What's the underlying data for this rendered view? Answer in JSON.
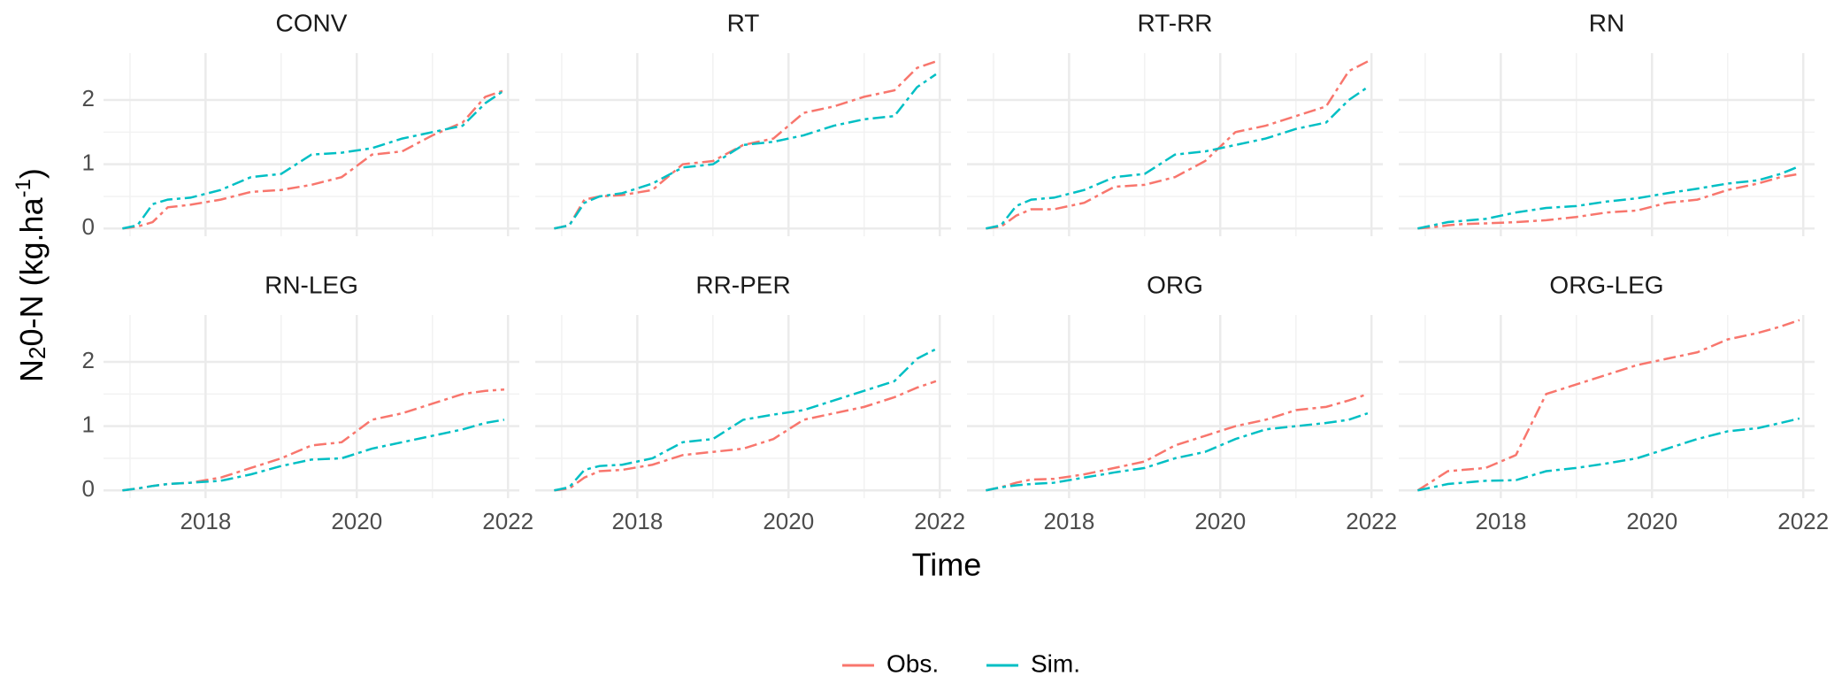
{
  "axis_labels": {
    "x": "Time",
    "y": [
      "N",
      "2",
      "0-N (kg.ha",
      "-1",
      ")"
    ]
  },
  "chart_data": [
    {
      "type": "line",
      "title": "CONV",
      "x": [
        2016.9,
        2017.1,
        2017.3,
        2017.5,
        2017.8,
        2018.2,
        2018.6,
        2019.0,
        2019.4,
        2019.8,
        2020.2,
        2020.6,
        2021.0,
        2021.4,
        2021.7,
        2021.95
      ],
      "xlim": [
        2016.65,
        2022.15
      ],
      "xticks": [
        2018,
        2020,
        2022
      ],
      "ylim": [
        -0.12,
        2.73
      ],
      "yticks": [
        0,
        1,
        2
      ],
      "grid": true,
      "series": [
        {
          "name": "Obs.",
          "color": "#F8766D",
          "values": [
            0,
            0.03,
            0.1,
            0.33,
            0.37,
            0.45,
            0.57,
            0.6,
            0.68,
            0.8,
            1.15,
            1.2,
            1.45,
            1.65,
            2.05,
            2.15
          ]
        },
        {
          "name": "Sim.",
          "color": "#00BFC4",
          "values": [
            0,
            0.05,
            0.38,
            0.45,
            0.48,
            0.6,
            0.8,
            0.85,
            1.15,
            1.18,
            1.25,
            1.4,
            1.5,
            1.6,
            1.95,
            2.15
          ]
        }
      ]
    },
    {
      "type": "line",
      "title": "RT",
      "x": [
        2016.9,
        2017.1,
        2017.3,
        2017.5,
        2017.8,
        2018.2,
        2018.6,
        2019.0,
        2019.4,
        2019.8,
        2020.2,
        2020.6,
        2021.0,
        2021.4,
        2021.7,
        2021.95
      ],
      "xlim": [
        2016.65,
        2022.15
      ],
      "xticks": [
        2018,
        2020,
        2022
      ],
      "ylim": [
        -0.12,
        2.73
      ],
      "yticks": [
        0,
        1,
        2
      ],
      "grid": true,
      "series": [
        {
          "name": "Obs.",
          "color": "#F8766D",
          "values": [
            0,
            0.05,
            0.45,
            0.5,
            0.52,
            0.6,
            1.0,
            1.05,
            1.3,
            1.4,
            1.8,
            1.9,
            2.05,
            2.15,
            2.5,
            2.6
          ]
        },
        {
          "name": "Sim.",
          "color": "#00BFC4",
          "values": [
            0,
            0.05,
            0.4,
            0.5,
            0.55,
            0.7,
            0.95,
            1.0,
            1.3,
            1.35,
            1.45,
            1.6,
            1.7,
            1.75,
            2.2,
            2.4
          ]
        }
      ]
    },
    {
      "type": "line",
      "title": "RT-RR",
      "x": [
        2016.9,
        2017.1,
        2017.3,
        2017.5,
        2017.8,
        2018.2,
        2018.6,
        2019.0,
        2019.4,
        2019.8,
        2020.2,
        2020.6,
        2021.0,
        2021.4,
        2021.7,
        2021.95
      ],
      "xlim": [
        2016.65,
        2022.15
      ],
      "xticks": [
        2018,
        2020,
        2022
      ],
      "ylim": [
        -0.12,
        2.73
      ],
      "yticks": [
        0,
        1,
        2
      ],
      "grid": true,
      "series": [
        {
          "name": "Obs.",
          "color": "#F8766D",
          "values": [
            0,
            0.03,
            0.2,
            0.3,
            0.3,
            0.4,
            0.65,
            0.68,
            0.8,
            1.05,
            1.5,
            1.6,
            1.75,
            1.9,
            2.45,
            2.6
          ]
        },
        {
          "name": "Sim.",
          "color": "#00BFC4",
          "values": [
            0,
            0.05,
            0.35,
            0.45,
            0.48,
            0.6,
            0.8,
            0.85,
            1.15,
            1.2,
            1.3,
            1.4,
            1.55,
            1.65,
            2.0,
            2.2
          ]
        }
      ]
    },
    {
      "type": "line",
      "title": "RN",
      "x": [
        2016.9,
        2017.1,
        2017.3,
        2017.5,
        2017.8,
        2018.2,
        2018.6,
        2019.0,
        2019.4,
        2019.8,
        2020.2,
        2020.6,
        2021.0,
        2021.4,
        2021.7,
        2021.95
      ],
      "xlim": [
        2016.65,
        2022.15
      ],
      "xticks": [
        2018,
        2020,
        2022
      ],
      "ylim": [
        -0.12,
        2.73
      ],
      "yticks": [
        0,
        1,
        2
      ],
      "grid": true,
      "series": [
        {
          "name": "Obs.",
          "color": "#F8766D",
          "values": [
            0,
            0.02,
            0.05,
            0.07,
            0.08,
            0.1,
            0.13,
            0.18,
            0.25,
            0.28,
            0.4,
            0.45,
            0.6,
            0.7,
            0.8,
            0.85
          ]
        },
        {
          "name": "Sim.",
          "color": "#00BFC4",
          "values": [
            0,
            0.05,
            0.1,
            0.12,
            0.15,
            0.25,
            0.32,
            0.35,
            0.42,
            0.47,
            0.55,
            0.62,
            0.7,
            0.75,
            0.85,
            0.97
          ]
        }
      ]
    },
    {
      "type": "line",
      "title": "RN-LEG",
      "x": [
        2016.9,
        2017.1,
        2017.3,
        2017.5,
        2017.8,
        2018.2,
        2018.6,
        2019.0,
        2019.4,
        2019.8,
        2020.2,
        2020.6,
        2021.0,
        2021.4,
        2021.7,
        2021.95
      ],
      "xlim": [
        2016.65,
        2022.15
      ],
      "xticks": [
        2018,
        2020,
        2022
      ],
      "ylim": [
        -0.12,
        2.73
      ],
      "yticks": [
        0,
        1,
        2
      ],
      "grid": true,
      "series": [
        {
          "name": "Obs.",
          "color": "#F8766D",
          "values": [
            0,
            0.03,
            0.07,
            0.1,
            0.12,
            0.2,
            0.35,
            0.5,
            0.7,
            0.75,
            1.1,
            1.2,
            1.35,
            1.5,
            1.55,
            1.57
          ]
        },
        {
          "name": "Sim.",
          "color": "#00BFC4",
          "values": [
            0,
            0.03,
            0.07,
            0.1,
            0.12,
            0.15,
            0.25,
            0.38,
            0.48,
            0.5,
            0.65,
            0.75,
            0.85,
            0.95,
            1.05,
            1.1
          ]
        }
      ]
    },
    {
      "type": "line",
      "title": "RR-PER",
      "x": [
        2016.9,
        2017.1,
        2017.3,
        2017.5,
        2017.8,
        2018.2,
        2018.6,
        2019.0,
        2019.4,
        2019.8,
        2020.2,
        2020.6,
        2021.0,
        2021.4,
        2021.7,
        2021.95
      ],
      "xlim": [
        2016.65,
        2022.15
      ],
      "xticks": [
        2018,
        2020,
        2022
      ],
      "ylim": [
        -0.12,
        2.73
      ],
      "yticks": [
        0,
        1,
        2
      ],
      "grid": true,
      "series": [
        {
          "name": "Obs.",
          "color": "#F8766D",
          "values": [
            0,
            0.03,
            0.2,
            0.3,
            0.32,
            0.4,
            0.55,
            0.6,
            0.65,
            0.8,
            1.1,
            1.2,
            1.3,
            1.45,
            1.6,
            1.7
          ]
        },
        {
          "name": "Sim.",
          "color": "#00BFC4",
          "values": [
            0,
            0.05,
            0.32,
            0.38,
            0.4,
            0.5,
            0.75,
            0.8,
            1.1,
            1.18,
            1.25,
            1.4,
            1.55,
            1.7,
            2.05,
            2.2
          ]
        }
      ]
    },
    {
      "type": "line",
      "title": "ORG",
      "x": [
        2016.9,
        2017.1,
        2017.3,
        2017.5,
        2017.8,
        2018.2,
        2018.6,
        2019.0,
        2019.4,
        2019.8,
        2020.2,
        2020.6,
        2021.0,
        2021.4,
        2021.7,
        2021.95
      ],
      "xlim": [
        2016.65,
        2022.15
      ],
      "xticks": [
        2018,
        2020,
        2022
      ],
      "ylim": [
        -0.12,
        2.73
      ],
      "yticks": [
        0,
        1,
        2
      ],
      "grid": true,
      "series": [
        {
          "name": "Obs.",
          "color": "#F8766D",
          "values": [
            0,
            0.05,
            0.12,
            0.17,
            0.18,
            0.25,
            0.35,
            0.45,
            0.7,
            0.85,
            1.0,
            1.1,
            1.25,
            1.3,
            1.4,
            1.5
          ]
        },
        {
          "name": "Sim.",
          "color": "#00BFC4",
          "values": [
            0,
            0.05,
            0.08,
            0.1,
            0.12,
            0.2,
            0.28,
            0.35,
            0.5,
            0.6,
            0.8,
            0.95,
            1.0,
            1.05,
            1.1,
            1.2
          ]
        }
      ]
    },
    {
      "type": "line",
      "title": "ORG-LEG",
      "x": [
        2016.9,
        2017.1,
        2017.3,
        2017.5,
        2017.8,
        2018.2,
        2018.6,
        2019.0,
        2019.4,
        2019.8,
        2020.2,
        2020.6,
        2021.0,
        2021.4,
        2021.7,
        2021.95
      ],
      "xlim": [
        2016.65,
        2022.15
      ],
      "xticks": [
        2018,
        2020,
        2022
      ],
      "ylim": [
        -0.12,
        2.73
      ],
      "yticks": [
        0,
        1,
        2
      ],
      "grid": true,
      "series": [
        {
          "name": "Obs.",
          "color": "#F8766D",
          "values": [
            0,
            0.15,
            0.3,
            0.32,
            0.35,
            0.55,
            1.5,
            1.65,
            1.8,
            1.95,
            2.05,
            2.15,
            2.35,
            2.45,
            2.55,
            2.65
          ]
        },
        {
          "name": "Sim.",
          "color": "#00BFC4",
          "values": [
            0,
            0.05,
            0.1,
            0.12,
            0.15,
            0.16,
            0.3,
            0.35,
            0.42,
            0.5,
            0.65,
            0.8,
            0.92,
            0.97,
            1.05,
            1.12
          ]
        }
      ]
    }
  ]
}
